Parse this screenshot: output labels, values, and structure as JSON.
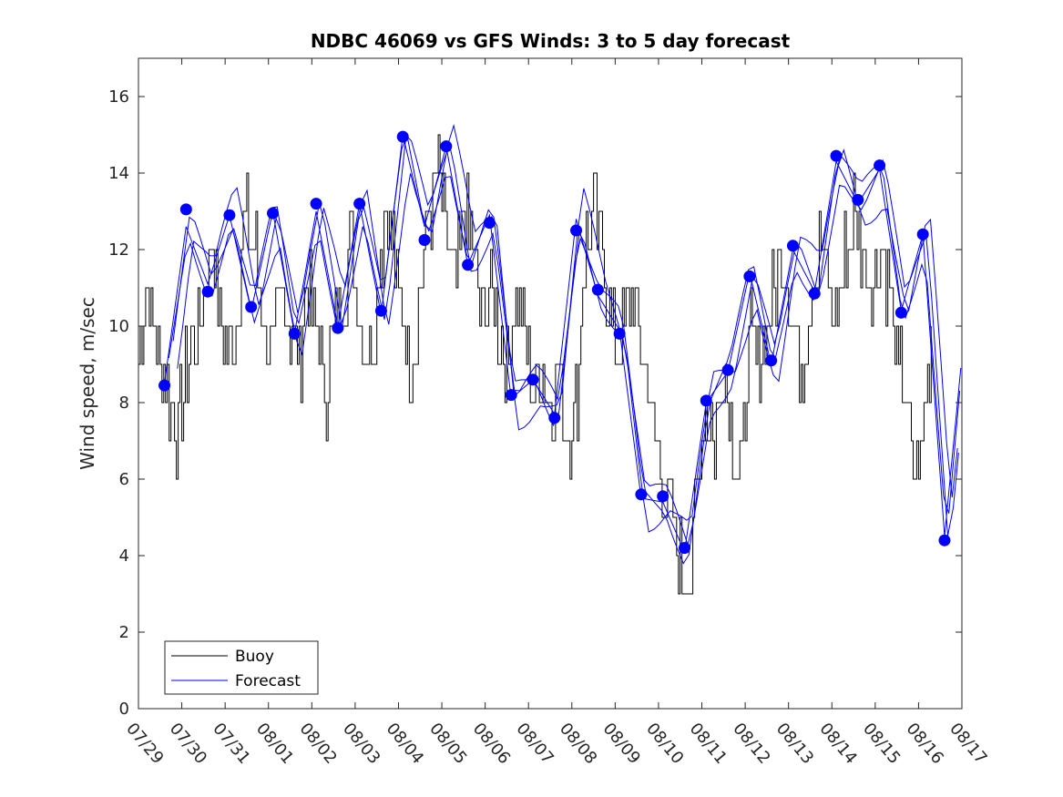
{
  "chart_data": {
    "type": "line",
    "title": "NDBC 46069 vs GFS Winds: 3 to 5 day forecast",
    "xlabel": "",
    "ylabel": "Wind speed, m/sec",
    "ylim": [
      0,
      17
    ],
    "xlim_days": [
      0,
      19
    ],
    "xticks": [
      "07/29",
      "07/30",
      "07/31",
      "08/01",
      "08/02",
      "08/03",
      "08/04",
      "08/05",
      "08/06",
      "08/07",
      "08/08",
      "08/09",
      "08/10",
      "08/11",
      "08/12",
      "08/13",
      "08/14",
      "08/15",
      "08/16",
      "08/17"
    ],
    "yticks": [
      0,
      2,
      4,
      6,
      8,
      10,
      12,
      14,
      16
    ],
    "legend": {
      "position": "bottom-left",
      "entries": [
        "Buoy",
        "Forecast"
      ]
    },
    "colors": {
      "buoy": "#000000",
      "forecast": "#0000ff",
      "dots": "#0000ff"
    },
    "series": [
      {
        "name": "Buoy",
        "x_days": [
          0,
          0.2,
          0.35,
          0.5,
          0.7,
          0.9,
          1.1,
          1.3,
          1.5,
          1.7,
          1.9,
          2.1,
          2.3,
          2.5,
          2.7,
          2.9,
          3.1,
          3.3,
          3.5,
          3.7,
          3.9,
          4.1,
          4.3,
          4.5,
          4.7,
          4.9,
          5.1,
          5.3,
          5.5,
          5.7,
          5.9,
          6.1,
          6.3,
          6.5,
          6.7,
          6.9,
          7.1,
          7.3,
          7.5,
          7.7,
          7.9,
          8.1,
          8.3,
          8.5,
          8.7,
          8.9,
          9.1,
          9.3,
          9.5,
          9.7,
          9.9,
          10.1,
          10.3,
          10.5,
          10.7,
          10.9,
          11.1,
          11.3,
          11.5,
          11.7,
          11.9,
          12.1,
          12.3,
          12.5,
          12.7,
          12.9,
          13.1,
          13.3,
          13.5,
          13.7,
          13.9,
          14.1,
          14.3,
          14.5,
          14.7,
          14.9,
          15.1,
          15.3,
          15.5,
          15.7,
          15.9,
          16.1,
          16.3,
          16.5,
          16.7,
          16.9,
          17.1,
          17.3,
          17.5,
          17.7,
          17.9,
          18.1,
          18.3
        ],
        "values": [
          9,
          11,
          10,
          9,
          8,
          7,
          9,
          10,
          11,
          12,
          10,
          9,
          11,
          13,
          12,
          10,
          9,
          11,
          10,
          9,
          11,
          10,
          8,
          10,
          11,
          12,
          10,
          9,
          11,
          13,
          12,
          10,
          9,
          11,
          13,
          14,
          12,
          11,
          13,
          12,
          10,
          11,
          10,
          9,
          11,
          10,
          8,
          9,
          8,
          9,
          7,
          8,
          12,
          13,
          12,
          10,
          9,
          11,
          10,
          9,
          7,
          6,
          5,
          4,
          3,
          6,
          8,
          7,
          9,
          7,
          6,
          10,
          9,
          10,
          11,
          12,
          10,
          9,
          11,
          12,
          11,
          10,
          12,
          13,
          12,
          11,
          12,
          11,
          9,
          8,
          6,
          7,
          10
        ]
      },
      {
        "name": "Forecast",
        "x_days": [
          0.6,
          1.1,
          1.6,
          2.1,
          2.6,
          3.1,
          3.6,
          4.1,
          4.6,
          5.1,
          5.6,
          6.1,
          6.6,
          7.1,
          7.6,
          8.1,
          8.6,
          9.1,
          9.6,
          10.1,
          10.6,
          11.1,
          11.6,
          12.1,
          12.6,
          13.1,
          13.6,
          14.1,
          14.6,
          15.1,
          15.6,
          16.1,
          16.6,
          17.1,
          17.6,
          18.1,
          18.6,
          19.0
        ],
        "values": [
          8.5,
          12.6,
          11.1,
          12.9,
          10.4,
          13.0,
          9.8,
          13.0,
          10.0,
          13.2,
          10.3,
          15.0,
          12.6,
          14.7,
          11.6,
          12.9,
          8.1,
          8.6,
          7.7,
          12.8,
          10.8,
          9.9,
          5.5,
          5.4,
          4.1,
          8.0,
          8.8,
          11.4,
          9.0,
          12.0,
          10.9,
          14.3,
          13.2,
          14.1,
          10.4,
          12.4,
          4.5,
          9.2
        ]
      }
    ],
    "forecast_points": {
      "x_days": [
        0.6,
        1.1,
        1.6,
        2.1,
        2.6,
        3.1,
        3.6,
        4.1,
        4.6,
        5.1,
        5.6,
        6.1,
        6.6,
        7.1,
        7.6,
        8.1,
        8.6,
        9.1,
        9.6,
        10.1,
        10.6,
        11.1,
        11.6,
        12.1,
        12.6,
        13.1,
        13.6,
        14.1,
        14.6,
        15.1,
        15.6,
        16.1,
        16.6,
        17.1,
        17.6,
        18.1,
        18.6
      ],
      "values": [
        8.45,
        13.05,
        10.9,
        12.9,
        10.5,
        12.95,
        9.8,
        13.2,
        9.95,
        13.2,
        10.4,
        14.95,
        12.25,
        14.7,
        11.6,
        12.7,
        8.2,
        8.6,
        7.6,
        12.5,
        10.95,
        9.8,
        5.6,
        5.55,
        4.2,
        8.05,
        8.85,
        11.3,
        9.1,
        12.1,
        10.85,
        14.45,
        13.3,
        14.2,
        10.35,
        12.4,
        4.4
      ]
    }
  }
}
